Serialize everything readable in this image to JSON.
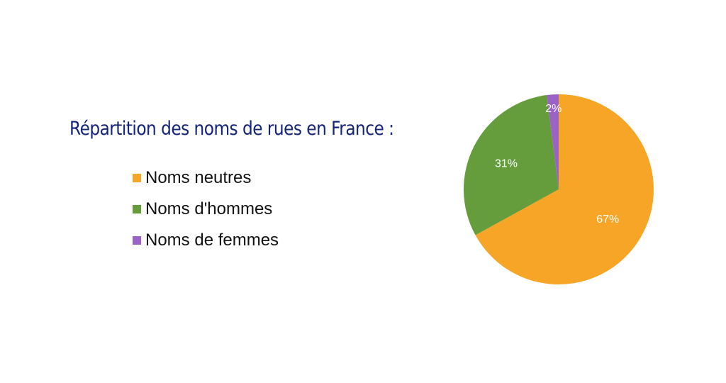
{
  "title": "Répartition des noms de rues en France :",
  "legend": {
    "items": [
      {
        "label": "Noms neutres",
        "color": "#f7a526"
      },
      {
        "label": "Noms d'hommes",
        "color": "#659c3c"
      },
      {
        "label": "Noms de femmes",
        "color": "#9a63c5"
      }
    ]
  },
  "chart_data": {
    "type": "pie",
    "title": "Répartition des noms de rues en France :",
    "categories": [
      "Noms neutres",
      "Noms d'hommes",
      "Noms de femmes"
    ],
    "values": [
      67,
      31,
      2
    ],
    "labels": [
      "67%",
      "31%",
      "2%"
    ],
    "colors": [
      "#f7a526",
      "#659c3c",
      "#9a63c5"
    ],
    "start_angle": "12 o'clock, clockwise",
    "legend_position": "left"
  }
}
